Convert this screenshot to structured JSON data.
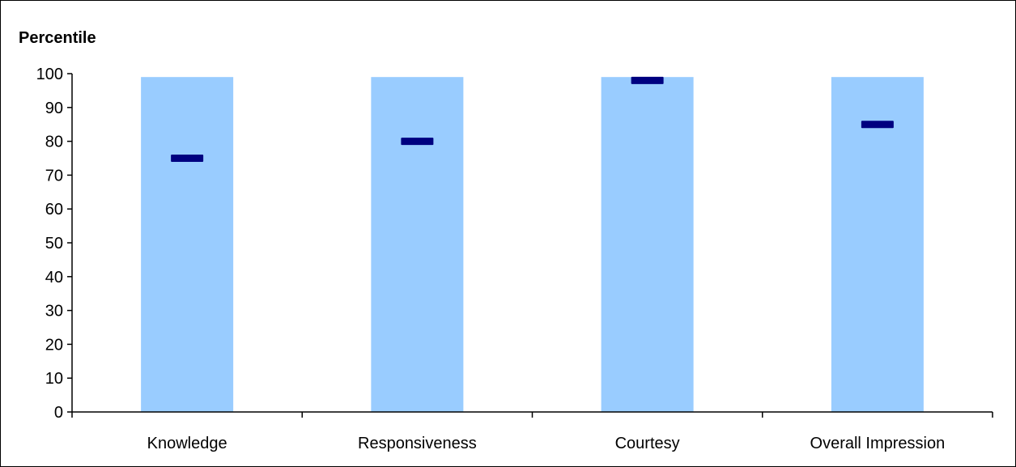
{
  "chart_data": {
    "type": "bar",
    "ylabel": "Percentile",
    "xlabel": "",
    "ylim": [
      0,
      100
    ],
    "yticks": [
      0,
      10,
      20,
      30,
      40,
      50,
      60,
      70,
      80,
      90,
      100
    ],
    "categories": [
      "Knowledge",
      "Responsiveness",
      "Courtesy",
      "Overall Impression"
    ],
    "series": [
      {
        "type": "bar",
        "values": [
          99,
          99,
          99,
          99
        ],
        "color": "#99ccff"
      },
      {
        "type": "marker",
        "values": [
          75,
          80,
          98,
          85
        ],
        "color": "#000080"
      }
    ],
    "grid": false,
    "legend": "none"
  }
}
